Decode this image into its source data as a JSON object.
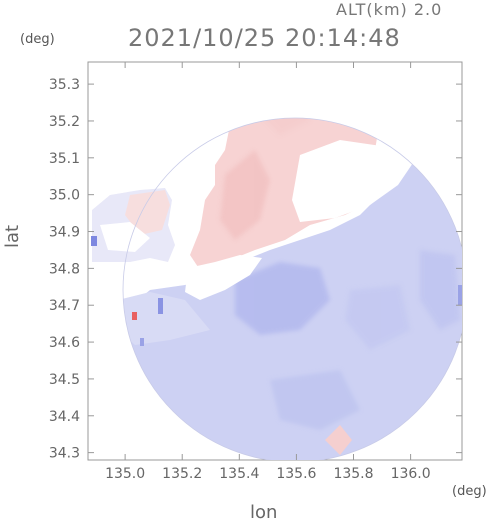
{
  "header": {
    "altitude": "ALT(km) 2.0",
    "timestamp": "2021/10/25 20:14:48"
  },
  "axes": {
    "y_unit": "(deg)",
    "x_unit": "(deg)",
    "y_label": "lat",
    "x_label": "lon"
  },
  "colors": {
    "approaching": "#c9cdf5",
    "receding": "#f8d6d6",
    "strong_approach": "#7d87e0",
    "strong_recede": "#e86060",
    "frame": "#999999"
  },
  "chart_data": {
    "type": "heatmap",
    "xlabel": "lon",
    "ylabel": "lat",
    "xlim": [
      134.87,
      136.18
    ],
    "ylim": [
      34.28,
      35.36
    ],
    "xticks": [
      135.0,
      135.2,
      135.4,
      135.6,
      135.8,
      136.0
    ],
    "yticks": [
      34.3,
      34.4,
      34.5,
      34.6,
      34.7,
      34.8,
      34.9,
      35.0,
      35.1,
      35.2,
      35.3
    ],
    "x_tick_labels": [
      "135.0",
      "135.2",
      "135.4",
      "135.6",
      "135.8",
      "136.0"
    ],
    "y_tick_labels": [
      "34.3",
      "34.4",
      "34.5",
      "34.6",
      "34.7",
      "34.8",
      "34.9",
      "35.0",
      "35.1",
      "35.2",
      "35.3"
    ]
  }
}
